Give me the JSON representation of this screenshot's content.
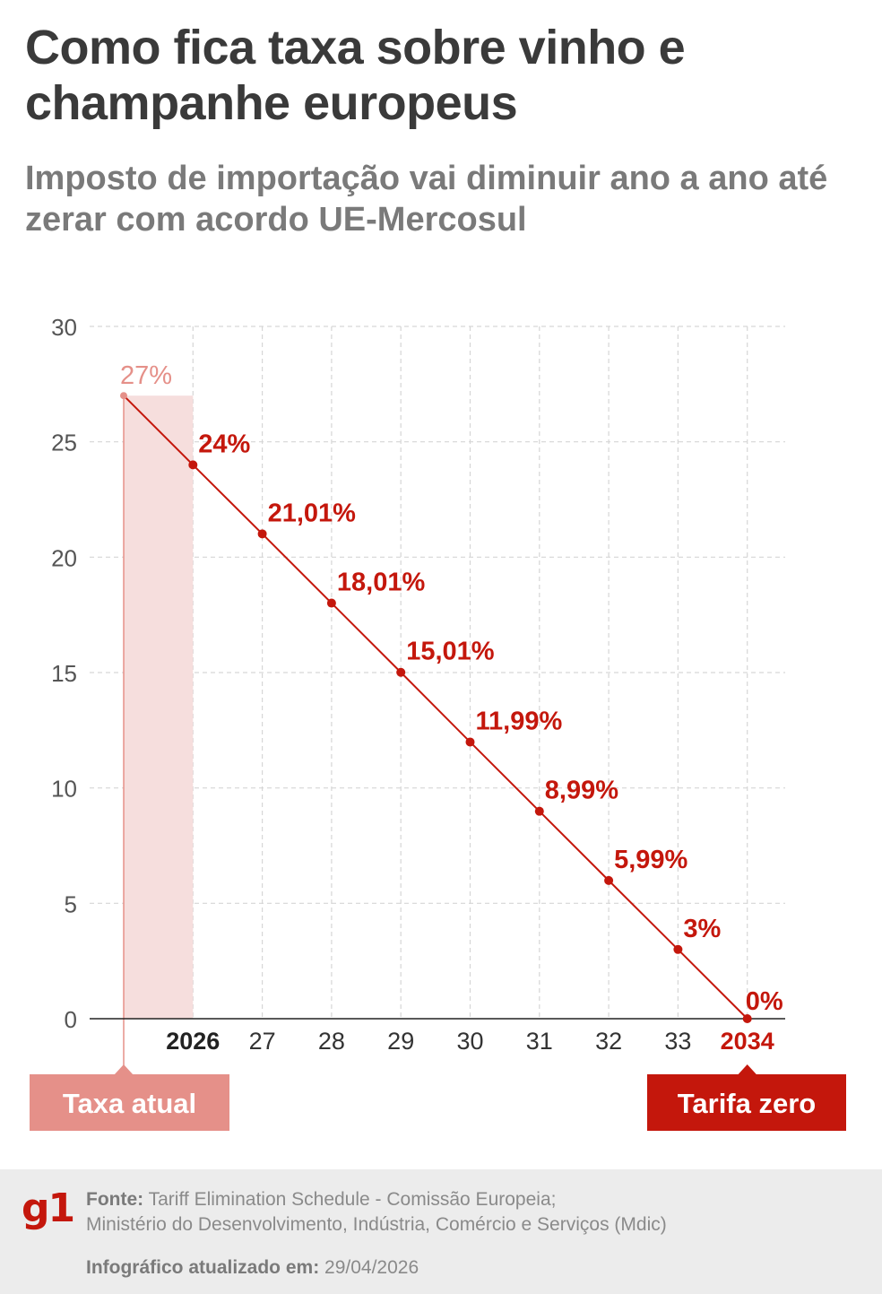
{
  "title": "Como fica taxa sobre vinho e champanhe europeus",
  "subtitle": "Imposto de importação vai diminuir ano a ano até zerar com acordo UE-Mercosul",
  "colors": {
    "accent": "#c4170c",
    "current": "#e59089",
    "current_fill": "#f6dedd",
    "grid": "#d6d6d6",
    "axis_text": "#555555",
    "title": "#3a3a3a",
    "subtitle": "#7a7a7a"
  },
  "chart_data": {
    "type": "line",
    "title": "",
    "xlabel": "",
    "ylabel": "",
    "ylim": [
      0,
      30
    ],
    "yticks": [
      0,
      5,
      10,
      15,
      20,
      25,
      30
    ],
    "grid": true,
    "x_tick_labels": [
      "2026",
      "27",
      "28",
      "29",
      "30",
      "31",
      "32",
      "33",
      "2034"
    ],
    "series": [
      {
        "x": [
          "Taxa atual",
          "2026",
          "2027",
          "2028",
          "2029",
          "2030",
          "2031",
          "2032",
          "2033",
          "2034"
        ],
        "values": [
          27,
          24,
          21.01,
          18.01,
          15.01,
          11.99,
          8.99,
          5.99,
          3,
          0
        ],
        "labels": [
          "27%",
          "24%",
          "21,01%",
          "18,01%",
          "15,01%",
          "11,99%",
          "8,99%",
          "5,99%",
          "3%",
          "0%"
        ]
      }
    ],
    "annotations": {
      "current_label": "Taxa atual",
      "zero_label": "Tarifa zero"
    }
  },
  "footer": {
    "logo": "g1",
    "source_label": "Fonte:",
    "source_line1": "Tariff Elimination Schedule - Comissão Europeia;",
    "source_line2": "Ministério do Desenvolvimento, Indústria, Comércio e Serviços (Mdic)",
    "updated_label": "Infográfico atualizado em:",
    "updated_value": "29/04/2026"
  }
}
